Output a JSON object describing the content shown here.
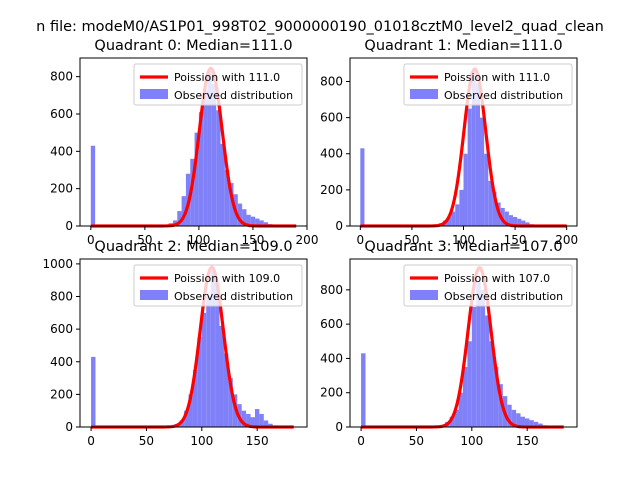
{
  "figure": {
    "suptitle": "n file: modeM0/AS1P01_998T02_9000000190_01018cztM0_level2_quad_clean"
  },
  "colors": {
    "hist": "#8080f8",
    "fit": "#ff0000",
    "axis": "#000000"
  },
  "chart_data": [
    {
      "type": "bar",
      "title": "Quadrant 0: Median=111.0",
      "xlim": [
        -10,
        200
      ],
      "ylim": [
        0,
        900
      ],
      "xticks": [
        "0",
        "50",
        "100",
        "150",
        "200"
      ],
      "yticks": [
        "0",
        "200",
        "400",
        "600",
        "800"
      ],
      "bin_width": 4,
      "bins": [
        [
          0,
          430
        ],
        [
          68,
          5
        ],
        [
          72,
          15
        ],
        [
          76,
          30
        ],
        [
          80,
          80
        ],
        [
          84,
          160
        ],
        [
          88,
          280
        ],
        [
          92,
          360
        ],
        [
          96,
          500
        ],
        [
          100,
          610
        ],
        [
          104,
          730
        ],
        [
          108,
          840
        ],
        [
          112,
          760
        ],
        [
          116,
          620
        ],
        [
          120,
          440
        ],
        [
          124,
          300
        ],
        [
          128,
          230
        ],
        [
          132,
          170
        ],
        [
          136,
          120
        ],
        [
          140,
          90
        ],
        [
          144,
          60
        ],
        [
          148,
          50
        ],
        [
          152,
          40
        ],
        [
          156,
          30
        ],
        [
          160,
          20
        ],
        [
          164,
          10
        ],
        [
          168,
          5
        ],
        [
          176,
          3
        ],
        [
          184,
          2
        ]
      ],
      "fit_mean": 111.0,
      "fit_peak": 845,
      "fit_range": [
        0,
        190
      ],
      "legend": [
        "Poission with 111.0",
        "Observed distribution"
      ]
    },
    {
      "type": "bar",
      "title": "Quadrant 1: Median=111.0",
      "xlim": [
        -10,
        210
      ],
      "ylim": [
        0,
        930
      ],
      "xticks": [
        "0",
        "50",
        "100",
        "150",
        "200"
      ],
      "yticks": [
        "0",
        "200",
        "400",
        "600",
        "800"
      ],
      "bin_width": 4,
      "bins": [
        [
          0,
          430
        ],
        [
          68,
          3
        ],
        [
          72,
          5
        ],
        [
          76,
          15
        ],
        [
          80,
          30
        ],
        [
          84,
          50
        ],
        [
          88,
          80
        ],
        [
          92,
          120
        ],
        [
          96,
          200
        ],
        [
          100,
          400
        ],
        [
          104,
          650
        ],
        [
          108,
          860
        ],
        [
          112,
          790
        ],
        [
          116,
          600
        ],
        [
          120,
          400
        ],
        [
          124,
          250
        ],
        [
          128,
          190
        ],
        [
          132,
          130
        ],
        [
          136,
          100
        ],
        [
          140,
          80
        ],
        [
          144,
          60
        ],
        [
          148,
          50
        ],
        [
          152,
          40
        ],
        [
          156,
          30
        ],
        [
          160,
          20
        ],
        [
          164,
          10
        ],
        [
          172,
          5
        ],
        [
          184,
          3
        ],
        [
          196,
          2
        ]
      ],
      "fit_mean": 111.0,
      "fit_peak": 870,
      "fit_range": [
        0,
        200
      ],
      "legend": [
        "Poission with 111.0",
        "Observed distribution"
      ]
    },
    {
      "type": "bar",
      "title": "Quadrant 2: Median=109.0",
      "xlim": [
        -10,
        195
      ],
      "ylim": [
        0,
        1030
      ],
      "xticks": [
        "0",
        "50",
        "100",
        "150"
      ],
      "yticks": [
        "0",
        "200",
        "400",
        "600",
        "800",
        "1000"
      ],
      "bin_width": 4,
      "bins": [
        [
          0,
          430
        ],
        [
          72,
          5
        ],
        [
          76,
          15
        ],
        [
          80,
          40
        ],
        [
          84,
          100
        ],
        [
          88,
          200
        ],
        [
          92,
          350
        ],
        [
          96,
          550
        ],
        [
          100,
          700
        ],
        [
          104,
          800
        ],
        [
          108,
          960
        ],
        [
          112,
          880
        ],
        [
          116,
          620
        ],
        [
          120,
          450
        ],
        [
          124,
          300
        ],
        [
          128,
          200
        ],
        [
          132,
          140
        ],
        [
          136,
          100
        ],
        [
          140,
          80
        ],
        [
          144,
          60
        ],
        [
          148,
          110
        ],
        [
          152,
          80
        ],
        [
          156,
          40
        ],
        [
          160,
          20
        ],
        [
          164,
          10
        ],
        [
          168,
          5
        ],
        [
          176,
          3
        ]
      ],
      "fit_mean": 109.0,
      "fit_peak": 980,
      "fit_range": [
        0,
        183
      ],
      "legend": [
        "Poission with 109.0",
        "Observed distribution"
      ]
    },
    {
      "type": "bar",
      "title": "Quadrant 3: Median=107.0",
      "xlim": [
        -10,
        195
      ],
      "ylim": [
        0,
        980
      ],
      "xticks": [
        "0",
        "50",
        "100",
        "150"
      ],
      "yticks": [
        "0",
        "200",
        "400",
        "600",
        "800"
      ],
      "bin_width": 4,
      "bins": [
        [
          0,
          430
        ],
        [
          68,
          5
        ],
        [
          72,
          10
        ],
        [
          76,
          30
        ],
        [
          80,
          60
        ],
        [
          84,
          100
        ],
        [
          88,
          200
        ],
        [
          92,
          350
        ],
        [
          96,
          500
        ],
        [
          100,
          700
        ],
        [
          104,
          850
        ],
        [
          108,
          800
        ],
        [
          112,
          650
        ],
        [
          116,
          500
        ],
        [
          120,
          350
        ],
        [
          124,
          250
        ],
        [
          128,
          180
        ],
        [
          132,
          130
        ],
        [
          136,
          100
        ],
        [
          140,
          80
        ],
        [
          144,
          60
        ],
        [
          148,
          50
        ],
        [
          152,
          40
        ],
        [
          156,
          30
        ],
        [
          160,
          20
        ],
        [
          164,
          10
        ],
        [
          168,
          5
        ],
        [
          176,
          3
        ]
      ],
      "fit_mean": 107.0,
      "fit_peak": 930,
      "fit_range": [
        0,
        183
      ],
      "legend": [
        "Poission with 107.0",
        "Observed distribution"
      ]
    }
  ]
}
